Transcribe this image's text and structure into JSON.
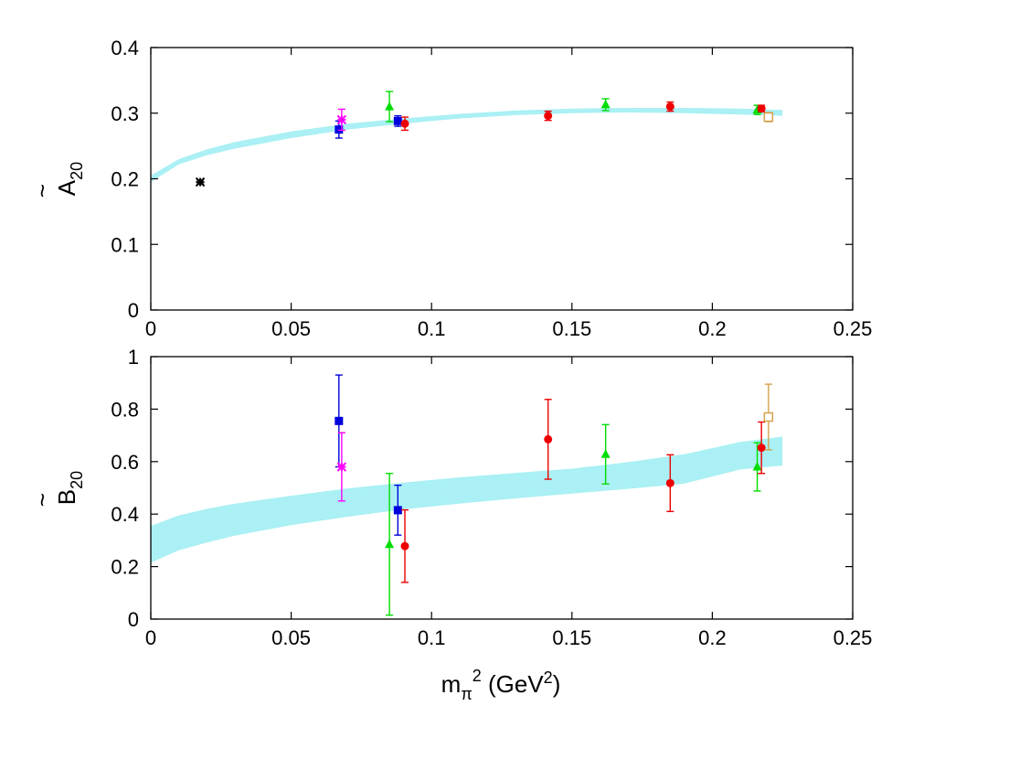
{
  "figure": {
    "xlabel": {
      "main": "m",
      "sub": "π",
      "sup": "2",
      "rest": " (GeV",
      "sup2": "2",
      "close": ")"
    }
  },
  "chart_data": [
    {
      "type": "scatter",
      "ylabel": {
        "tilde": "~",
        "main": "A",
        "sub": "20"
      },
      "xlim": [
        0,
        0.25
      ],
      "ylim": [
        0,
        0.4
      ],
      "xticks": [
        "0",
        "0.05",
        "0.1",
        "0.15",
        "0.2",
        "0.25"
      ],
      "yticks": [
        "0",
        "0.1",
        "0.2",
        "0.3",
        "0.4"
      ],
      "band": {
        "color": "#aaf0f4",
        "x": [
          0,
          0.01,
          0.02,
          0.03,
          0.05,
          0.07,
          0.09,
          0.11,
          0.13,
          0.15,
          0.17,
          0.19,
          0.21,
          0.225
        ],
        "lower": [
          0.195,
          0.222,
          0.236,
          0.246,
          0.262,
          0.275,
          0.284,
          0.292,
          0.297,
          0.3,
          0.301,
          0.3,
          0.298,
          0.296
        ],
        "upper": [
          0.205,
          0.23,
          0.245,
          0.256,
          0.272,
          0.284,
          0.292,
          0.299,
          0.304,
          0.307,
          0.308,
          0.308,
          0.307,
          0.305
        ]
      },
      "series": [
        {
          "color": "#000000",
          "marker": "star",
          "points": [
            {
              "x": 0.0176,
              "y": 0.195,
              "err": 0.003
            }
          ]
        },
        {
          "color": "#0000dd",
          "marker": "square",
          "points": [
            {
              "x": 0.067,
              "y": 0.275,
              "err": 0.013
            },
            {
              "x": 0.088,
              "y": 0.288,
              "err": 0.008
            }
          ]
        },
        {
          "color": "#ff00ff",
          "marker": "star",
          "points": [
            {
              "x": 0.068,
              "y": 0.29,
              "err": 0.016
            }
          ]
        },
        {
          "color": "#00dd00",
          "marker": "triangle",
          "points": [
            {
              "x": 0.085,
              "y": 0.31,
              "err": 0.023
            },
            {
              "x": 0.162,
              "y": 0.313,
              "err": 0.009
            },
            {
              "x": 0.216,
              "y": 0.305,
              "err": 0.007
            }
          ]
        },
        {
          "color": "#ee0000",
          "marker": "circle",
          "points": [
            {
              "x": 0.0905,
              "y": 0.284,
              "err": 0.01
            },
            {
              "x": 0.1415,
              "y": 0.296,
              "err": 0.007
            },
            {
              "x": 0.185,
              "y": 0.31,
              "err": 0.007
            },
            {
              "x": 0.2175,
              "y": 0.307,
              "err": 0.005
            }
          ]
        },
        {
          "color": "#d4a24a",
          "marker": "open-square",
          "points": [
            {
              "x": 0.22,
              "y": 0.294,
              "err": 0.007
            }
          ]
        }
      ]
    },
    {
      "type": "scatter",
      "ylabel": {
        "tilde": "~",
        "main": "B",
        "sub": "20"
      },
      "xlim": [
        0,
        0.25
      ],
      "ylim": [
        0,
        1
      ],
      "xticks": [
        "0",
        "0.05",
        "0.1",
        "0.15",
        "0.2",
        "0.25"
      ],
      "yticks": [
        "0",
        "0.2",
        "0.4",
        "0.6",
        "0.8",
        "1"
      ],
      "band": {
        "color": "#aaf0f4",
        "x": [
          0,
          0.01,
          0.02,
          0.03,
          0.05,
          0.07,
          0.09,
          0.11,
          0.13,
          0.15,
          0.17,
          0.19,
          0.21,
          0.225
        ],
        "lower": [
          0.215,
          0.262,
          0.292,
          0.318,
          0.358,
          0.39,
          0.418,
          0.44,
          0.46,
          0.478,
          0.496,
          0.516,
          0.57,
          0.585
        ],
        "upper": [
          0.355,
          0.395,
          0.42,
          0.44,
          0.47,
          0.498,
          0.52,
          0.54,
          0.557,
          0.573,
          0.598,
          0.628,
          0.675,
          0.695
        ]
      },
      "series": [
        {
          "color": "#0000dd",
          "marker": "square",
          "points": [
            {
              "x": 0.067,
              "y": 0.755,
              "err": 0.175
            },
            {
              "x": 0.088,
              "y": 0.415,
              "err": 0.095
            }
          ]
        },
        {
          "color": "#ff00ff",
          "marker": "star",
          "points": [
            {
              "x": 0.068,
              "y": 0.58,
              "err": 0.13
            }
          ]
        },
        {
          "color": "#00dd00",
          "marker": "triangle",
          "points": [
            {
              "x": 0.085,
              "y": 0.285,
              "err": 0.27
            },
            {
              "x": 0.162,
              "y": 0.628,
              "err": 0.113
            },
            {
              "x": 0.216,
              "y": 0.58,
              "err": 0.092
            }
          ]
        },
        {
          "color": "#ee0000",
          "marker": "circle",
          "points": [
            {
              "x": 0.0905,
              "y": 0.278,
              "err": 0.138
            },
            {
              "x": 0.1415,
              "y": 0.685,
              "err": 0.152
            },
            {
              "x": 0.185,
              "y": 0.518,
              "err": 0.108
            },
            {
              "x": 0.2175,
              "y": 0.653,
              "err": 0.098
            }
          ]
        },
        {
          "color": "#d4a24a",
          "marker": "open-square",
          "points": [
            {
              "x": 0.22,
              "y": 0.77,
              "err": 0.125
            }
          ]
        }
      ]
    }
  ]
}
